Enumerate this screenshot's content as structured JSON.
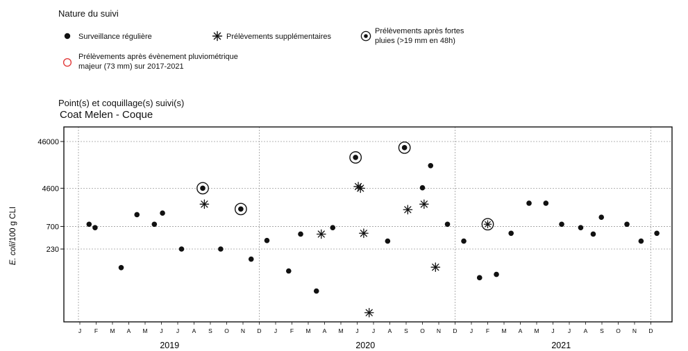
{
  "legend": {
    "title": "Nature du suivi",
    "items": [
      {
        "symbol": "dot",
        "label": "Surveillance régulière"
      },
      {
        "symbol": "star",
        "label": "Prélèvements supplémentaires"
      },
      {
        "symbol": "ring",
        "label_lines": [
          "Prélèvements après fortes",
          "pluies (>19 mm en 48h)"
        ]
      },
      {
        "symbol": "red-ring",
        "label_lines": [
          "Prélèvements après évènement pluviométrique",
          "majeur (73 mm) sur 2017-2021"
        ]
      }
    ]
  },
  "section": {
    "title": "Point(s) et coquillage(s) suivi(s)",
    "site": "Coat Melen - Coque"
  },
  "colors": {
    "marker": "#111111",
    "red_ring": "#e23b3b",
    "grid": "#9a9a9a"
  },
  "chart_data": {
    "type": "scatter",
    "ylabel_italic": "E. coli",
    "ylabel_rest": "/100 g CLI",
    "y_scale": "log",
    "y_ticks": [
      "46000",
      "4600",
      "700",
      "230"
    ],
    "y_tick_values": [
      46000,
      4600,
      700,
      230
    ],
    "ylim": [
      8,
      46000
    ],
    "x_unit": "month index from Jan 2019",
    "xlim": [
      0,
      36
    ],
    "month_labels": [
      "J",
      "F",
      "M",
      "A",
      "M",
      "J",
      "J",
      "A",
      "S",
      "O",
      "N",
      "D",
      "J",
      "F",
      "M",
      "A",
      "M",
      "J",
      "J",
      "A",
      "S",
      "O",
      "N",
      "D",
      "J",
      "F",
      "M",
      "A",
      "M",
      "J",
      "J",
      "A",
      "S",
      "O",
      "N",
      "D"
    ],
    "years": [
      "2019",
      "2020",
      "2021"
    ],
    "points": [
      {
        "date": "2019-01-18",
        "value": 780,
        "type": "regular"
      },
      {
        "date": "2019-01-29",
        "value": 660,
        "type": "regular"
      },
      {
        "date": "2019-03-17",
        "value": 92,
        "type": "regular"
      },
      {
        "date": "2019-04-16",
        "value": 1250,
        "type": "regular"
      },
      {
        "date": "2019-05-18",
        "value": 780,
        "type": "regular"
      },
      {
        "date": "2019-06-03",
        "value": 1350,
        "type": "regular"
      },
      {
        "date": "2019-07-08",
        "value": 230,
        "type": "regular"
      },
      {
        "date": "2019-08-17",
        "value": 4600,
        "type": "rain"
      },
      {
        "date": "2019-08-20",
        "value": 2100,
        "type": "supplementary"
      },
      {
        "date": "2019-09-20",
        "value": 230,
        "type": "regular"
      },
      {
        "date": "2019-10-27",
        "value": 1650,
        "type": "rain"
      },
      {
        "date": "2019-11-16",
        "value": 140,
        "type": "regular"
      },
      {
        "date": "2019-12-15",
        "value": 350,
        "type": "regular"
      },
      {
        "date": "2020-01-25",
        "value": 78,
        "type": "regular"
      },
      {
        "date": "2020-02-17",
        "value": 480,
        "type": "regular"
      },
      {
        "date": "2020-03-16",
        "value": 29,
        "type": "regular"
      },
      {
        "date": "2020-03-25",
        "value": 480,
        "type": "supplementary"
      },
      {
        "date": "2020-04-16",
        "value": 660,
        "type": "regular"
      },
      {
        "date": "2020-05-28",
        "value": 21000,
        "type": "rain"
      },
      {
        "date": "2020-06-03",
        "value": 5000,
        "type": "supplementary"
      },
      {
        "date": "2020-06-07",
        "value": 4600,
        "type": "supplementary"
      },
      {
        "date": "2020-06-13",
        "value": 500,
        "type": "supplementary"
      },
      {
        "date": "2020-06-23",
        "value": 10,
        "type": "supplementary"
      },
      {
        "date": "2020-07-27",
        "value": 340,
        "type": "regular"
      },
      {
        "date": "2020-08-28",
        "value": 34000,
        "type": "rain"
      },
      {
        "date": "2020-09-04",
        "value": 1600,
        "type": "supplementary"
      },
      {
        "date": "2020-10-01",
        "value": 4700,
        "type": "regular"
      },
      {
        "date": "2020-10-04",
        "value": 2100,
        "type": "supplementary"
      },
      {
        "date": "2020-10-16",
        "value": 14000,
        "type": "regular"
      },
      {
        "date": "2020-10-25",
        "value": 94,
        "type": "supplementary"
      },
      {
        "date": "2020-11-17",
        "value": 780,
        "type": "regular"
      },
      {
        "date": "2020-12-17",
        "value": 340,
        "type": "regular"
      },
      {
        "date": "2021-01-16",
        "value": 56,
        "type": "regular"
      },
      {
        "date": "2021-02-01",
        "value": 780,
        "type": "rain"
      },
      {
        "date": "2021-02-17",
        "value": 66,
        "type": "regular"
      },
      {
        "date": "2021-03-14",
        "value": 500,
        "type": "regular"
      },
      {
        "date": "2021-04-17",
        "value": 2200,
        "type": "regular"
      },
      {
        "date": "2021-05-18",
        "value": 2200,
        "type": "regular"
      },
      {
        "date": "2021-06-17",
        "value": 780,
        "type": "regular"
      },
      {
        "date": "2021-07-22",
        "value": 660,
        "type": "regular"
      },
      {
        "date": "2021-08-15",
        "value": 480,
        "type": "regular"
      },
      {
        "date": "2021-08-30",
        "value": 1100,
        "type": "regular"
      },
      {
        "date": "2021-10-17",
        "value": 780,
        "type": "regular"
      },
      {
        "date": "2021-11-13",
        "value": 340,
        "type": "regular"
      },
      {
        "date": "2021-12-12",
        "value": 500,
        "type": "regular"
      }
    ],
    "grid": true
  }
}
